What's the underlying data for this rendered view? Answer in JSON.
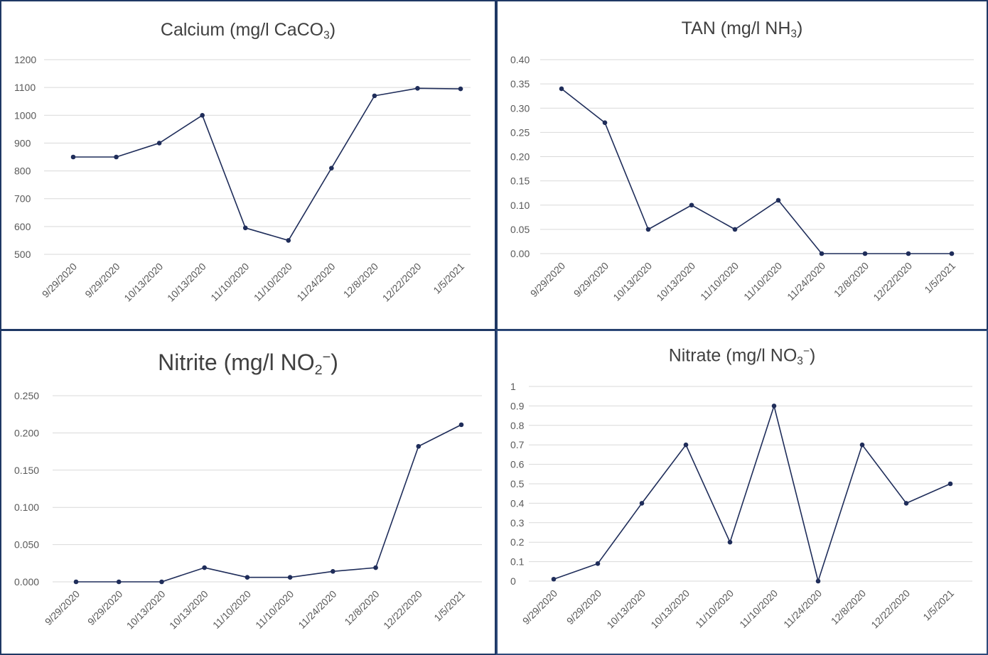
{
  "colors": {
    "line": "#1f2d5a",
    "grid": "#d9d9d9",
    "text": "#595959",
    "border": "#1f3864"
  },
  "chart_data": [
    {
      "type": "line",
      "title": "Calcium (mg/l CaCO3)",
      "title_parts": {
        "pre": "Calcium (mg/l CaCO",
        "sub": "3",
        "post": ")"
      },
      "categories": [
        "9/29/2020",
        "9/29/2020",
        "10/13/2020",
        "10/13/2020",
        "11/10/2020",
        "11/10/2020",
        "11/24/2020",
        "12/8/2020",
        "12/22/2020",
        "1/5/2021"
      ],
      "values": [
        850,
        850,
        900,
        1000,
        595,
        550,
        810,
        1070,
        1097,
        1095
      ],
      "ylim": [
        500,
        1200
      ],
      "yticks": [
        "500",
        "600",
        "700",
        "800",
        "900",
        "1000",
        "1100",
        "1200"
      ],
      "grid": true
    },
    {
      "type": "line",
      "title": "TAN (mg/l NH3)",
      "title_parts": {
        "pre": "TAN (mg/l NH",
        "sub": "3",
        "post": ")"
      },
      "categories": [
        "9/29/2020",
        "9/29/2020",
        "10/13/2020",
        "10/13/2020",
        "11/10/2020",
        "11/10/2020",
        "11/24/2020",
        "12/8/2020",
        "12/22/2020",
        "1/5/2021"
      ],
      "values": [
        0.34,
        0.27,
        0.05,
        0.1,
        0.05,
        0.11,
        0.0,
        0.0,
        0.0,
        0.0
      ],
      "ylim": [
        0,
        0.4
      ],
      "yticks": [
        "0.00",
        "0.05",
        "0.10",
        "0.15",
        "0.20",
        "0.25",
        "0.30",
        "0.35",
        "0.40"
      ],
      "grid": true
    },
    {
      "type": "line",
      "title": "Nitrite (mg/l NO2−)",
      "title_parts": {
        "pre": "Nitrite (mg/l NO",
        "sub": "2",
        "sup": "−",
        "post": ")"
      },
      "categories": [
        "9/29/2020",
        "9/29/2020",
        "10/13/2020",
        "10/13/2020",
        "11/10/2020",
        "11/10/2020",
        "11/24/2020",
        "12/8/2020",
        "12/22/2020",
        "1/5/2021"
      ],
      "values": [
        0.0,
        0.0,
        0.0,
        0.019,
        0.006,
        0.006,
        0.014,
        0.019,
        0.182,
        0.211
      ],
      "ylim": [
        0,
        0.25
      ],
      "yticks": [
        "0.000",
        "0.050",
        "0.100",
        "0.150",
        "0.200",
        "0.250"
      ],
      "grid": true
    },
    {
      "type": "line",
      "title": "Nitrate (mg/l NO3−)",
      "title_parts": {
        "pre": "Nitrate (mg/l NO",
        "sub": "3",
        "sup": "−",
        "post": ")"
      },
      "categories": [
        "9/29/2020",
        "9/29/2020",
        "10/13/2020",
        "10/13/2020",
        "11/10/2020",
        "11/10/2020",
        "11/24/2020",
        "12/8/2020",
        "12/22/2020",
        "1/5/2021"
      ],
      "values": [
        0.01,
        0.09,
        0.4,
        0.7,
        0.2,
        0.9,
        0.0,
        0.7,
        0.4,
        0.5
      ],
      "ylim": [
        0,
        1
      ],
      "yticks": [
        "0",
        "0.1",
        "0.2",
        "0.3",
        "0.4",
        "0.5",
        "0.6",
        "0.7",
        "0.8",
        "0.9",
        "1"
      ],
      "grid": true
    }
  ]
}
